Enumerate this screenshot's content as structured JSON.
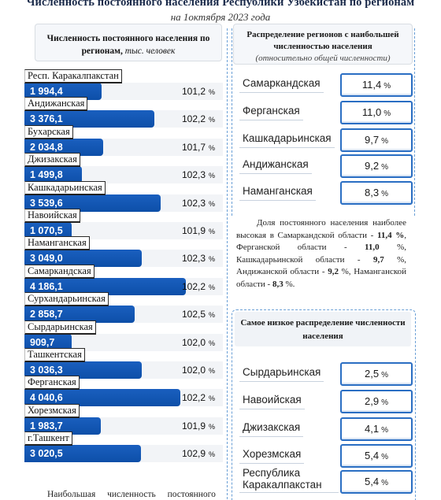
{
  "header": {
    "title": "Численность постоянного населения Республики Узбекистан по регионам",
    "subtitle": "на 1октября 2023 года"
  },
  "left_panel": {
    "heading_bold": "Численность постоянного населения по регионам,",
    "heading_unit": "тыс. человек",
    "regions": [
      {
        "name": "Респ. Каракалпакстан",
        "value": "1 994,4",
        "pct": "101,2",
        "pct_sign": "%",
        "value_num": 1994.4
      },
      {
        "name": "Андижанская",
        "value": "3 376,1",
        "pct": "102,2",
        "pct_sign": "%",
        "value_num": 3376.1
      },
      {
        "name": "Бухарская",
        "value": "2 034,8",
        "pct": "101,7",
        "pct_sign": "%",
        "value_num": 2034.8
      },
      {
        "name": "Джизакская",
        "value": "1 499,8",
        "pct": "102,3",
        "pct_sign": "%",
        "value_num": 1499.8
      },
      {
        "name": "Кашкадарьинская",
        "value": "3 539,6",
        "pct": "102,3",
        "pct_sign": "%",
        "value_num": 3539.6
      },
      {
        "name": "Навоийская",
        "value": "1 070,5",
        "pct": "101,9",
        "pct_sign": "%",
        "value_num": 1070.5
      },
      {
        "name": "Наманганская",
        "value": "3 049,0",
        "pct": "102,3",
        "pct_sign": "%",
        "value_num": 3049.0
      },
      {
        "name": "Самаркандская",
        "value": "4 186,1",
        "pct": "102,2",
        "pct_sign": "%",
        "value_num": 4186.1
      },
      {
        "name": "Сурхандарьинская",
        "value": "2 858,7",
        "pct": "102,5",
        "pct_sign": "%",
        "value_num": 2858.7
      },
      {
        "name": "Сырдарьинская",
        "value": "909,7",
        "pct": "102,0",
        "pct_sign": "%",
        "value_num": 909.7
      },
      {
        "name": "Ташкентская",
        "value": "3 036,3",
        "pct": "102,0",
        "pct_sign": "%",
        "value_num": 3036.3
      },
      {
        "name": "Ферганская",
        "value": "4 040,6",
        "pct": "102,2",
        "pct_sign": "%",
        "value_num": 4040.6
      },
      {
        "name": "Хорезмская",
        "value": "1 983,7",
        "pct": "101,9",
        "pct_sign": "%",
        "value_num": 1983.7
      },
      {
        "name": "г.Ташкент",
        "value": "3 020,5",
        "pct": "102,9",
        "pct_sign": "%",
        "value_num": 3020.5
      }
    ]
  },
  "top_share": {
    "heading": "Распределение регионов с наибольшей численностью населения",
    "heading_note": "(относительно общей численности)",
    "items": [
      {
        "name": "Самаркандская",
        "value": "11,4",
        "sign": "%"
      },
      {
        "name": "Ферганская",
        "value": "11,0",
        "sign": "%"
      },
      {
        "name": "Кашкадарьинская",
        "value": "9,7",
        "sign": "%"
      },
      {
        "name": "Андижанская",
        "value": "9,2",
        "sign": "%"
      },
      {
        "name": "Наманганская",
        "value": "8,3",
        "sign": "%"
      }
    ],
    "note_parts": [
      "Доля постоянного населения наиболее высокая в Самаркандской области - ",
      "11,4 %",
      ", Ферганской области - ",
      "11,0",
      " %, Кашкадарьинской области - ",
      "9,7",
      " %, Андижанской области - ",
      "9,2",
      " %, Наманганской области - ",
      "8,3",
      " %."
    ]
  },
  "low_share": {
    "heading": "Самое низкое распределение численности населения",
    "items": [
      {
        "name": "Сырдарьинская",
        "value": "2,5",
        "sign": "%"
      },
      {
        "name": "Навоийская",
        "value": "2,9",
        "sign": "%"
      },
      {
        "name": "Джизакская",
        "value": "4,1",
        "sign": "%"
      },
      {
        "name": "Хорезмская",
        "value": "5,4",
        "sign": "%"
      },
      {
        "name": "Республика Каракалпакстан",
        "value": "5,4",
        "sign": "%"
      }
    ]
  },
  "footer_text": "Наибольшая численность постоянного"
}
